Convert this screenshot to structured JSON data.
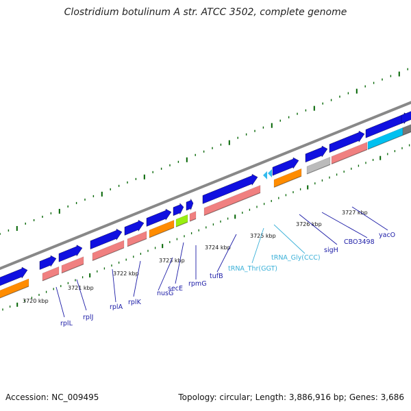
{
  "title": "Clostridium botulinum A str. ATCC 3502, complete genome",
  "footer": {
    "accession": "Accession: NC_009495",
    "summary": "Topology: circular; Length: 3,886,916 bp; Genes: 3,686"
  },
  "colors": {
    "forward_cds": "#1010e0",
    "reverse_cds": "#f08080",
    "orange_feature": "#ff8c00",
    "green_feature": "#99ee11",
    "cyan_feature": "#00c0f0",
    "gray_feature": "#bbbbbb",
    "trna": "#33bbee",
    "backbone": "#888888",
    "ticks": "#006400",
    "gene_label": "#1a1aa6",
    "trna_label": "#3ab0d8"
  },
  "scale_labels": [
    {
      "text": "3720 kbp"
    },
    {
      "text": "3721 kbp"
    },
    {
      "text": "3722 kbp"
    },
    {
      "text": "3723 kbp"
    },
    {
      "text": "3724 kbp"
    },
    {
      "text": "3725 kbp"
    },
    {
      "text": "3726 kbp"
    },
    {
      "text": "3727 kbp"
    }
  ],
  "gene_labels": [
    {
      "text": "rplL",
      "type": "gene"
    },
    {
      "text": "rplJ",
      "type": "gene"
    },
    {
      "text": "rplA",
      "type": "gene"
    },
    {
      "text": "rplK",
      "type": "gene"
    },
    {
      "text": "nusG",
      "type": "gene"
    },
    {
      "text": "secE",
      "type": "gene"
    },
    {
      "text": "rpmG",
      "type": "gene"
    },
    {
      "text": "tufB",
      "type": "gene"
    },
    {
      "text": "tRNA_Thr(GGT)",
      "type": "trna"
    },
    {
      "text": "tRNA_Gly(CCC)",
      "type": "trna"
    },
    {
      "text": "sigH",
      "type": "gene"
    },
    {
      "text": "CBO3498",
      "type": "gene"
    },
    {
      "text": "yacO",
      "type": "gene"
    }
  ]
}
